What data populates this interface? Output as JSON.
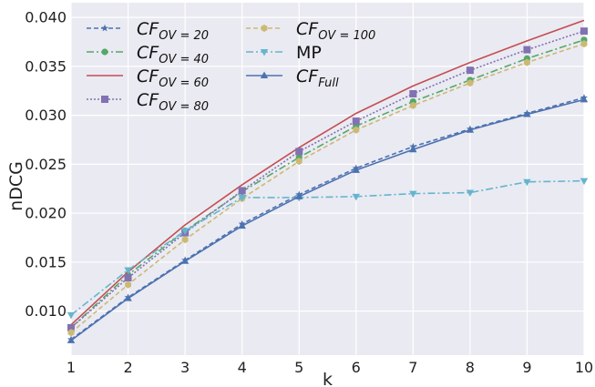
{
  "chart_data": {
    "type": "line",
    "xlabel": "k",
    "ylabel": "nDCG",
    "x": [
      1,
      2,
      3,
      4,
      5,
      6,
      7,
      8,
      9,
      10
    ],
    "xlim": [
      1,
      10
    ],
    "ylim": [
      0.0055,
      0.0415
    ],
    "yticks": [
      0.01,
      0.015,
      0.02,
      0.025,
      0.03,
      0.035,
      0.04
    ],
    "ytick_labels": [
      "0.010",
      "0.015",
      "0.020",
      "0.025",
      "0.030",
      "0.035",
      "0.040"
    ],
    "xtick_labels": [
      "1",
      "2",
      "3",
      "4",
      "5",
      "6",
      "7",
      "8",
      "9",
      "10"
    ],
    "grid": true,
    "legend_position": "top-left",
    "series": [
      {
        "name": "CF_OV=20",
        "label_main": "CF",
        "label_sub": "OV = 20",
        "color": "#4C72B0",
        "dash": "5,3",
        "marker": "star",
        "values": [
          0.0071,
          0.0114,
          0.0152,
          0.0189,
          0.0219,
          0.0246,
          0.0268,
          0.0286,
          0.0302,
          0.0318
        ]
      },
      {
        "name": "CF_OV=40",
        "label_main": "CF",
        "label_sub": "OV = 40",
        "color": "#55A868",
        "dash": "8,3,2,3",
        "marker": "circle",
        "values": [
          0.0083,
          0.0137,
          0.0182,
          0.0222,
          0.0257,
          0.0289,
          0.0314,
          0.0336,
          0.0358,
          0.0377
        ]
      },
      {
        "name": "CF_OV=60",
        "label_main": "CF",
        "label_sub": "OV = 60",
        "color": "#C44E52",
        "dash": "",
        "marker": "none",
        "values": [
          0.0086,
          0.014,
          0.0188,
          0.0229,
          0.0267,
          0.0302,
          0.033,
          0.0354,
          0.0376,
          0.0397
        ]
      },
      {
        "name": "CF_OV=80",
        "label_main": "CF",
        "label_sub": "OV = 80",
        "color": "#8172B2",
        "dash": "2,2",
        "marker": "square",
        "values": [
          0.0083,
          0.0134,
          0.018,
          0.0223,
          0.0263,
          0.0294,
          0.0322,
          0.0346,
          0.0367,
          0.0386
        ]
      },
      {
        "name": "CF_OV=100",
        "label_main": "CF",
        "label_sub": "OV = 100",
        "color": "#CCB974",
        "dash": "5,3",
        "marker": "hexagon",
        "values": [
          0.0078,
          0.0127,
          0.0173,
          0.0215,
          0.0253,
          0.0285,
          0.031,
          0.0333,
          0.0354,
          0.0373
        ]
      },
      {
        "name": "MP",
        "label_main": "MP",
        "label_sub": "",
        "color": "#64B5CD",
        "dash": "8,3,2,3",
        "marker": "triangle-down",
        "values": [
          0.0096,
          0.0142,
          0.0182,
          0.0216,
          0.0216,
          0.0217,
          0.022,
          0.0221,
          0.0232,
          0.0233
        ]
      },
      {
        "name": "CF_Full",
        "label_main": "CF",
        "label_sub": "Full",
        "color": "#4C72B0",
        "dash": "",
        "marker": "triangle-up",
        "values": [
          0.007,
          0.0113,
          0.0151,
          0.0187,
          0.0217,
          0.0244,
          0.0265,
          0.0285,
          0.0301,
          0.0316
        ]
      }
    ]
  }
}
